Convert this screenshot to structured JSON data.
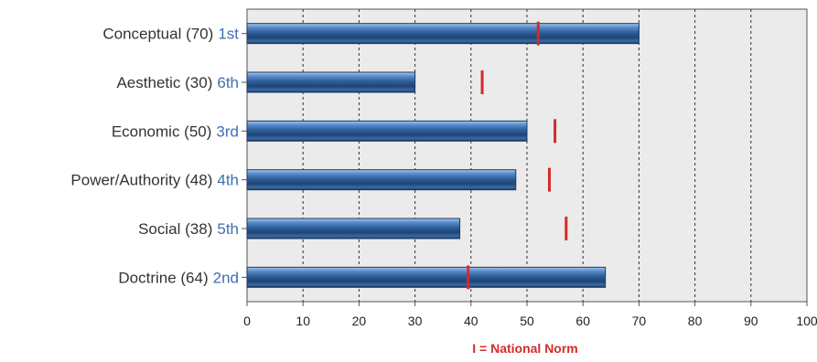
{
  "chart_data": {
    "type": "bar",
    "orientation": "horizontal",
    "categories": [
      "Conceptual (70)",
      "Aesthetic (30)",
      "Economic (50)",
      "Power/Authority (48)",
      "Social (38)",
      "Doctrine (64)"
    ],
    "ranks": [
      "1st",
      "6th",
      "3rd",
      "4th",
      "5th",
      "2nd"
    ],
    "values": [
      70,
      30,
      50,
      48,
      38,
      64
    ],
    "national_norm": [
      52,
      42,
      55,
      54,
      57,
      39.5
    ],
    "xlim": [
      0,
      100
    ],
    "xticks": [
      "0",
      "10",
      "20",
      "30",
      "40",
      "50",
      "60",
      "70",
      "80",
      "90",
      "100"
    ],
    "grid": "vertical dashed",
    "legend": "I = National Norm",
    "colors": {
      "bar": "#2f5f99",
      "norm_marker": "#d42a2a",
      "plot_bg": "#ebebeb",
      "rank_text": "#3f6fb0"
    }
  }
}
